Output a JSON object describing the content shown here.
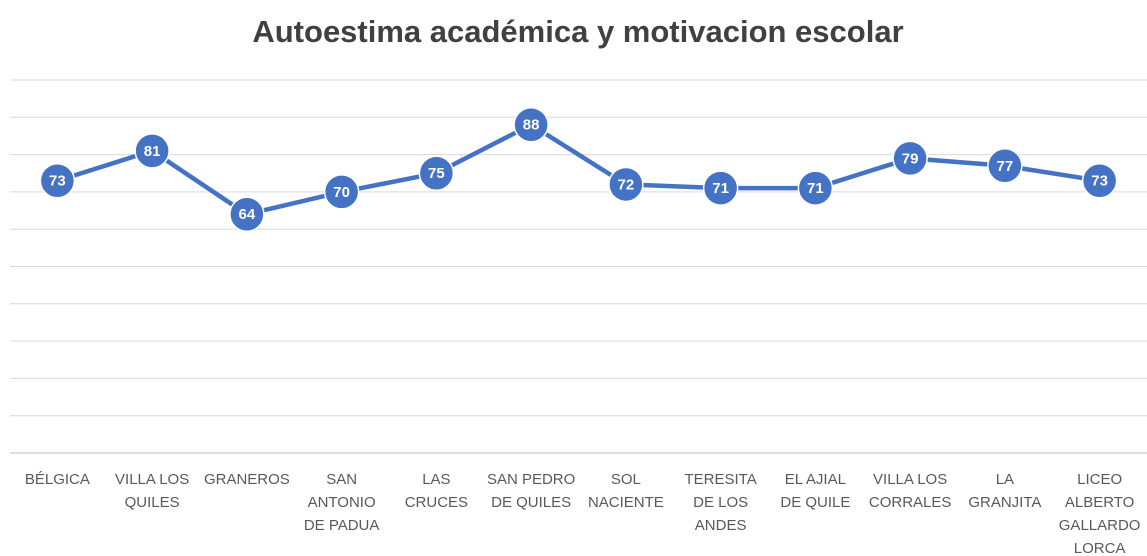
{
  "chart_data": {
    "type": "line",
    "title": "Autoestima académica y motivacion escolar",
    "categories": [
      "BÉLGICA",
      "VILLA LOS QUILES",
      "GRANEROS",
      "SAN ANTONIO DE PADUA",
      "LAS CRUCES",
      "SAN PEDRO DE QUILES",
      "SOL NACIENTE",
      "TERESITA DE LOS ANDES",
      "EL AJIAL DE QUILE",
      "VILLA LOS CORRALES",
      "LA GRANJITA",
      "LICEO ALBERTO GALLARDO LORCA"
    ],
    "values": [
      73,
      81,
      64,
      70,
      75,
      88,
      72,
      71,
      71,
      79,
      77,
      73
    ],
    "color": "#4472c4",
    "ylim": [
      0,
      100
    ],
    "yticks": [
      0,
      10,
      20,
      30,
      40,
      50,
      60,
      70,
      80,
      90,
      100
    ],
    "grid": true
  }
}
